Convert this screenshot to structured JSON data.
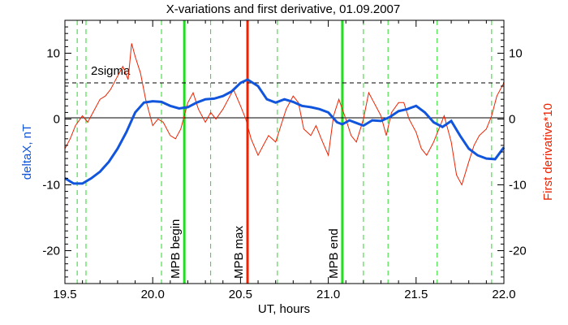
{
  "chart_data": {
    "type": "line",
    "title": "X-variations and first derivative, 01.09.2007",
    "xlabel": "UT, hours",
    "ylabel_left": "deltaX, nT",
    "ylabel_right": "First derivative*10",
    "xlim": [
      19.5,
      22.0
    ],
    "ylim": [
      -25,
      15
    ],
    "x_ticks": [
      19.5,
      20.0,
      20.5,
      21.0,
      21.5,
      22.0
    ],
    "x_tick_labels": [
      "19.5",
      "20.0",
      "20.5",
      "21.0",
      "21.5",
      "22.0"
    ],
    "y_ticks": [
      -20,
      -10,
      0,
      10
    ],
    "y_tick_labels": [
      "-20",
      "-10",
      "0",
      "10"
    ],
    "grid": false,
    "colors": {
      "deltaX": "#1155dd",
      "derivative": "#ee2200",
      "mpb_edges": "#22dd22",
      "mpb_max": "#ee2200",
      "dashed_markers": "#22dd22"
    },
    "zero_line": 0,
    "sigma_level": 5.5,
    "sigma_label": "2sigma",
    "series": [
      {
        "key": "deltaX",
        "x": [
          19.5,
          19.55,
          19.6,
          19.65,
          19.7,
          19.75,
          19.8,
          19.85,
          19.9,
          19.95,
          20.0,
          20.05,
          20.1,
          20.15,
          20.2,
          20.25,
          20.3,
          20.35,
          20.4,
          20.45,
          20.5,
          20.54,
          20.6,
          20.65,
          20.7,
          20.75,
          20.8,
          20.85,
          20.9,
          20.95,
          21.0,
          21.05,
          21.08,
          21.12,
          21.17,
          21.2,
          21.25,
          21.3,
          21.35,
          21.4,
          21.45,
          21.5,
          21.55,
          21.6,
          21.65,
          21.7,
          21.75,
          21.8,
          21.85,
          21.9,
          21.95,
          22.0
        ],
        "values": [
          -9.0,
          -9.8,
          -9.8,
          -9.0,
          -8.0,
          -6.5,
          -4.5,
          -2.0,
          1.0,
          2.5,
          2.7,
          2.6,
          2.0,
          1.6,
          1.8,
          2.5,
          3.0,
          3.1,
          3.5,
          4.2,
          5.5,
          6.0,
          5.0,
          3.0,
          2.5,
          3.0,
          2.6,
          2.0,
          1.8,
          1.5,
          1.0,
          -0.5,
          -0.8,
          -0.2,
          -0.7,
          -1.0,
          -0.2,
          -0.3,
          0.3,
          1.2,
          1.5,
          2.0,
          1.0,
          -0.5,
          -1.2,
          -0.3,
          -2.5,
          -4.5,
          -5.5,
          -6.0,
          -6.1,
          -4.3
        ]
      },
      {
        "key": "derivative",
        "x": [
          19.5,
          19.53,
          19.56,
          19.6,
          19.63,
          19.66,
          19.7,
          19.73,
          19.76,
          19.8,
          19.83,
          19.86,
          19.88,
          19.9,
          19.93,
          19.96,
          20.0,
          20.03,
          20.06,
          20.1,
          20.13,
          20.16,
          20.2,
          20.23,
          20.26,
          20.3,
          20.33,
          20.36,
          20.4,
          20.43,
          20.46,
          20.5,
          20.53,
          20.56,
          20.6,
          20.63,
          20.66,
          20.7,
          20.73,
          20.76,
          20.8,
          20.83,
          20.86,
          20.9,
          20.93,
          20.96,
          21.0,
          21.03,
          21.06,
          21.1,
          21.13,
          21.16,
          21.2,
          21.23,
          21.26,
          21.3,
          21.33,
          21.36,
          21.4,
          21.43,
          21.46,
          21.5,
          21.53,
          21.56,
          21.6,
          21.63,
          21.66,
          21.7,
          21.73,
          21.76,
          21.8,
          21.83,
          21.86,
          21.9,
          21.93,
          21.96,
          22.0
        ],
        "values": [
          -4.5,
          -3.0,
          -1.0,
          0.5,
          -0.5,
          1.0,
          3.0,
          3.5,
          4.5,
          6.5,
          8.0,
          6.0,
          11.5,
          9.5,
          7.0,
          3.0,
          -1.0,
          0.0,
          -0.5,
          -2.5,
          -3.0,
          -1.5,
          2.5,
          4.0,
          1.5,
          -0.5,
          1.0,
          0.0,
          1.5,
          3.0,
          4.5,
          2.0,
          0.0,
          -3.0,
          -5.5,
          -4.0,
          -2.5,
          -3.5,
          -1.0,
          1.5,
          3.5,
          2.5,
          -1.5,
          -2.5,
          -1.0,
          -3.0,
          -5.5,
          0.5,
          3.0,
          0.0,
          -2.5,
          -3.5,
          0.0,
          4.0,
          2.5,
          0.5,
          -2.5,
          1.0,
          2.5,
          2.5,
          0.0,
          -2.0,
          -4.5,
          -5.5,
          -3.5,
          -1.5,
          0.5,
          -3.5,
          -8.5,
          -10.0,
          -6.5,
          -4.0,
          -2.5,
          -1.5,
          0.5,
          3.5,
          5.5
        ]
      }
    ],
    "solid_markers": [
      {
        "x": 20.18,
        "label": "MPB begin",
        "color": "#22dd22"
      },
      {
        "x": 20.54,
        "label": "MPB max",
        "color": "#ee2200"
      },
      {
        "x": 21.08,
        "label": "MPB end",
        "color": "#22dd22"
      }
    ],
    "dashed_marker_x": [
      19.57,
      19.62,
      20.05,
      20.33,
      20.71,
      21.2,
      21.34,
      21.62,
      21.93
    ]
  }
}
